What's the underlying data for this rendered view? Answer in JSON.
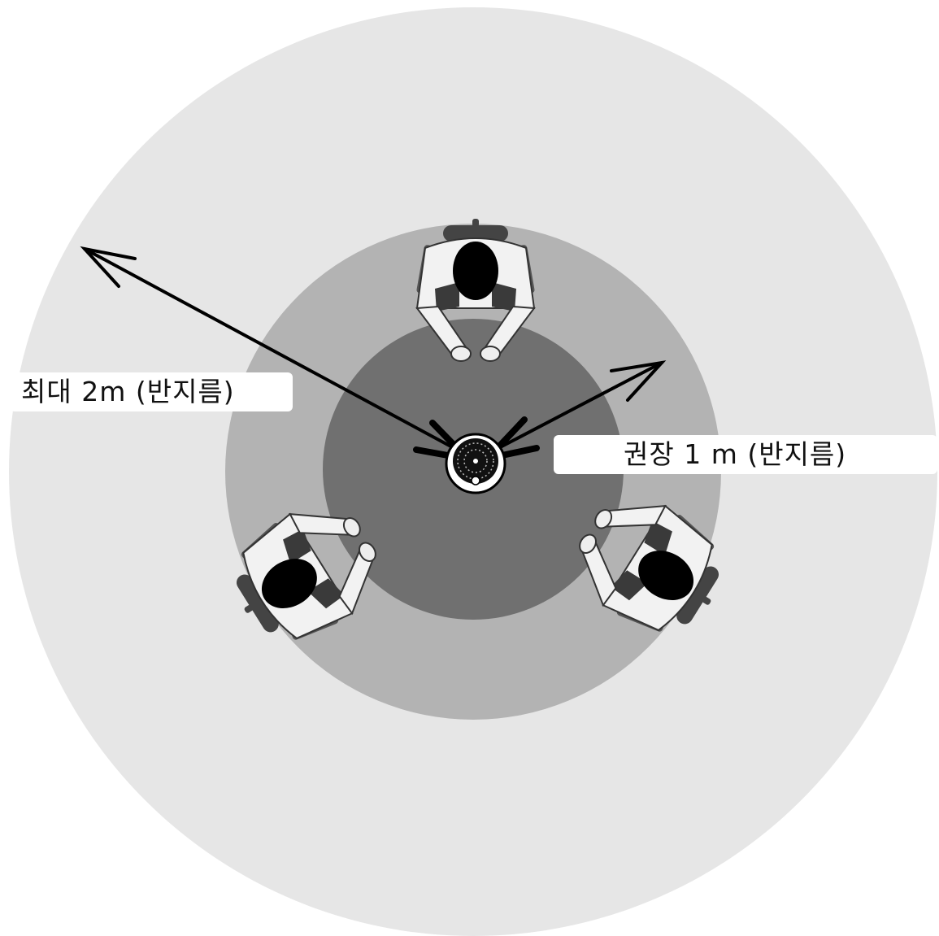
{
  "labels": {
    "max_range": "최대 2m (반지름)",
    "recommended_range": "권장 1 m (반지름)"
  },
  "colors": {
    "outer_zone": "#e6e6e6",
    "middle_zone": "#b3b3b3",
    "inner_zone": "#707070",
    "person_body": "#f2f2f2",
    "person_head": "#000000",
    "arrow": "#000000"
  }
}
